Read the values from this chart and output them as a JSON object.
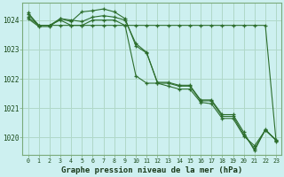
{
  "title": "Graphe pression niveau de la mer (hPa)",
  "bg_color": "#cdf0f0",
  "grid_color": "#b0d8c8",
  "line_color": "#2d6e2d",
  "x_ticks": [
    0,
    1,
    2,
    3,
    4,
    5,
    6,
    7,
    8,
    9,
    10,
    11,
    12,
    13,
    14,
    15,
    16,
    17,
    18,
    19,
    20,
    21,
    22,
    23
  ],
  "ylim": [
    1019.4,
    1024.6
  ],
  "yticks": [
    1020,
    1021,
    1022,
    1023,
    1024
  ],
  "series": [
    [
      1024.25,
      1023.82,
      1023.82,
      1023.82,
      1023.82,
      1023.82,
      1023.82,
      1023.82,
      1023.82,
      1023.82,
      1023.82,
      1023.82,
      1023.82,
      1023.82,
      1023.82,
      1023.82,
      1023.82,
      1023.82,
      1023.82,
      1023.82,
      1023.82,
      1023.82,
      1023.82,
      1019.85
    ],
    [
      1024.2,
      1023.82,
      1023.82,
      1024.0,
      1023.82,
      1023.82,
      1024.0,
      1024.0,
      1024.0,
      1023.82,
      1022.1,
      1021.85,
      1021.85,
      1021.75,
      1021.65,
      1021.65,
      1021.2,
      1021.15,
      1020.65,
      1020.65,
      1020.05,
      1019.72,
      1020.25,
      1019.9
    ],
    [
      1024.1,
      1023.82,
      1023.82,
      1024.05,
      1024.0,
      1023.95,
      1024.1,
      1024.15,
      1024.1,
      1024.0,
      1023.2,
      1022.9,
      1021.85,
      1021.85,
      1021.75,
      1021.75,
      1021.25,
      1021.25,
      1020.72,
      1020.72,
      1020.1,
      1019.62,
      1020.25,
      1019.92
    ],
    [
      1024.05,
      1023.78,
      1023.78,
      1024.05,
      1023.95,
      1024.28,
      1024.32,
      1024.38,
      1024.28,
      1024.05,
      1023.12,
      1022.88,
      1021.88,
      1021.88,
      1021.78,
      1021.78,
      1021.28,
      1021.28,
      1020.78,
      1020.78,
      1020.18,
      1019.55,
      1020.28,
      1019.9
    ]
  ]
}
